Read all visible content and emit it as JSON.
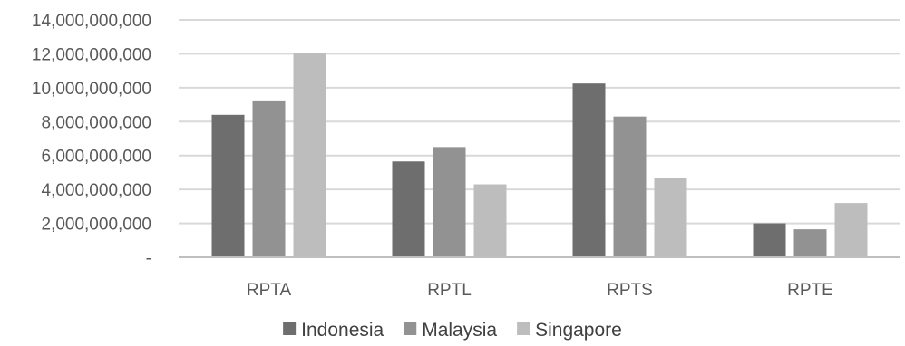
{
  "chart_data": {
    "type": "bar",
    "title": "",
    "xlabel": "",
    "ylabel": "",
    "categories": [
      "RPTA",
      "RPTL",
      "RPTS",
      "RPTE"
    ],
    "ylim": [
      0,
      14000000000
    ],
    "yticks": [
      0,
      2000000000,
      4000000000,
      6000000000,
      8000000000,
      10000000000,
      12000000000,
      14000000000
    ],
    "ytick_labels": [
      "-",
      "2,000,000,000",
      "4,000,000,000",
      "6,000,000,000",
      "8,000,000,000",
      "10,000,000,000",
      "12,000,000,000",
      "14,000,000,000"
    ],
    "grid": true,
    "legend_position": "bottom",
    "series": [
      {
        "name": "Indonesia",
        "color": "#6e6e6e",
        "values": [
          8400000000,
          5650000000,
          10250000000,
          2000000000
        ]
      },
      {
        "name": "Malaysia",
        "color": "#929292",
        "values": [
          9250000000,
          6500000000,
          8300000000,
          1650000000
        ]
      },
      {
        "name": "Singapore",
        "color": "#bdbdbd",
        "values": [
          12050000000,
          4300000000,
          4650000000,
          3200000000
        ]
      }
    ]
  }
}
